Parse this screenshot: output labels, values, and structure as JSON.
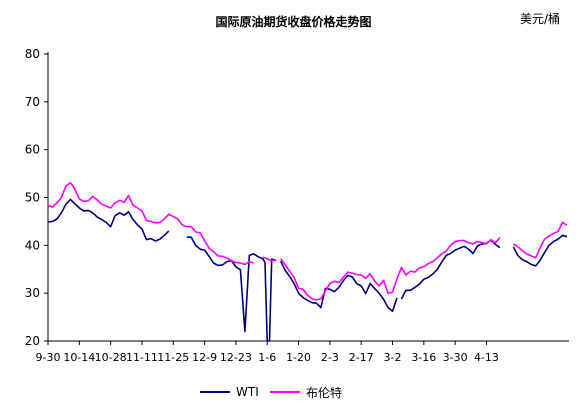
{
  "chart_data": {
    "type": "line",
    "title": "国际原油期货收盘价格走势图",
    "unit": "美元/桶",
    "ylim": [
      20,
      80
    ],
    "yticks": [
      20,
      30,
      40,
      50,
      60,
      70,
      80
    ],
    "grid": false,
    "legend_position": "bottom",
    "x_tick_labels": [
      "9-30",
      "10-14",
      "10-28",
      "11-11",
      "11-25",
      "12-9",
      "12-23",
      "1-6",
      "1-20",
      "2-3",
      "2-17",
      "3-2",
      "3-16",
      "3-30",
      "4-13"
    ],
    "x_index": [
      0,
      7,
      14,
      21,
      28,
      35,
      42,
      49,
      56,
      63,
      70,
      77,
      84,
      91,
      98
    ],
    "series": [
      {
        "name": "WTI",
        "color": "#000080",
        "points": [
          [
            0,
            44.9
          ],
          [
            1,
            45.0
          ],
          [
            2,
            45.5
          ],
          [
            3,
            46.8
          ],
          [
            4,
            48.6
          ],
          [
            5,
            49.6
          ],
          [
            6,
            48.7
          ],
          [
            7,
            47.8
          ],
          [
            8,
            47.2
          ],
          [
            9,
            47.3
          ],
          [
            10,
            46.8
          ],
          [
            11,
            45.9
          ],
          [
            12,
            45.4
          ],
          [
            13,
            44.8
          ],
          [
            14,
            43.9
          ],
          [
            15,
            46.2
          ],
          [
            16,
            46.8
          ],
          [
            17,
            46.3
          ],
          [
            18,
            47.0
          ],
          [
            19,
            45.4
          ],
          [
            20,
            44.3
          ],
          [
            21,
            43.4
          ],
          [
            22,
            41.2
          ],
          [
            23,
            41.4
          ],
          [
            24,
            40.9
          ],
          [
            25,
            41.3
          ],
          [
            26,
            42.1
          ],
          [
            27,
            43.0
          ],
          null,
          [
            31,
            41.7
          ],
          [
            32,
            41.7
          ],
          [
            33,
            40.0
          ],
          [
            34,
            39.2
          ],
          [
            35,
            39.0
          ],
          [
            36,
            37.7
          ],
          [
            37,
            36.3
          ],
          [
            38,
            35.8
          ],
          [
            39,
            35.9
          ],
          [
            40,
            36.6
          ],
          [
            41,
            36.8
          ],
          [
            42,
            35.5
          ],
          [
            43,
            34.9
          ],
          [
            44,
            22.0
          ],
          [
            45,
            37.9
          ],
          [
            46,
            38.2
          ],
          [
            47,
            37.6
          ],
          [
            48,
            37.2
          ],
          [
            48.5,
            36.4
          ],
          [
            49,
            20.0
          ],
          [
            49.5,
            20.0
          ],
          [
            50,
            37.1
          ],
          [
            51,
            36.8
          ],
          null,
          [
            52,
            36.7
          ],
          [
            53,
            34.8
          ],
          [
            54,
            33.5
          ],
          [
            55,
            32.0
          ],
          [
            56,
            30.0
          ],
          [
            57,
            29.1
          ],
          [
            58,
            28.5
          ],
          [
            59,
            28.0
          ],
          [
            60,
            27.9
          ],
          [
            61,
            27.0
          ],
          [
            62,
            31.0
          ],
          [
            63,
            30.8
          ],
          [
            64,
            30.3
          ],
          [
            65,
            31.2
          ],
          [
            66,
            32.6
          ],
          [
            67,
            33.7
          ],
          [
            68,
            33.4
          ],
          [
            69,
            32.0
          ],
          [
            70,
            31.5
          ],
          [
            71,
            29.9
          ],
          [
            72,
            32.0
          ],
          [
            73,
            31.0
          ],
          [
            74,
            30.0
          ],
          [
            75,
            28.7
          ],
          [
            76,
            27.0
          ],
          [
            77,
            26.2
          ],
          [
            78,
            29.0
          ],
          null,
          [
            79,
            28.8
          ],
          [
            80,
            30.6
          ],
          [
            81,
            30.6
          ],
          [
            82,
            31.2
          ],
          [
            83,
            31.9
          ],
          [
            84,
            32.9
          ],
          [
            85,
            33.3
          ],
          [
            86,
            34.0
          ],
          [
            87,
            35.0
          ],
          [
            88,
            36.5
          ],
          [
            89,
            37.9
          ],
          [
            90,
            38.3
          ],
          [
            91,
            39.0
          ],
          [
            92,
            39.4
          ],
          [
            93,
            39.8
          ],
          [
            94,
            39.2
          ],
          [
            95,
            38.3
          ],
          [
            96,
            39.9
          ],
          [
            97,
            40.3
          ],
          [
            98,
            40.4
          ],
          [
            99,
            41.1
          ],
          [
            100,
            40.2
          ],
          [
            101,
            39.5
          ],
          null,
          [
            104,
            39.7
          ],
          [
            105,
            37.9
          ],
          [
            106,
            37.0
          ],
          [
            107,
            36.6
          ],
          [
            108,
            36.0
          ],
          [
            109,
            35.7
          ],
          [
            110,
            36.9
          ],
          [
            111,
            38.5
          ],
          [
            112,
            40.0
          ],
          [
            113,
            40.8
          ],
          [
            114,
            41.3
          ],
          [
            115,
            42.1
          ],
          [
            116,
            41.8
          ]
        ]
      },
      {
        "name": "布伦特",
        "color": "#ff00ff",
        "points": [
          [
            0,
            48.4
          ],
          [
            1,
            48.0
          ],
          [
            2,
            48.9
          ],
          [
            3,
            50.0
          ],
          [
            4,
            52.4
          ],
          [
            5,
            53.1
          ],
          [
            6,
            51.8
          ],
          [
            7,
            49.7
          ],
          [
            8,
            49.2
          ],
          [
            9,
            49.3
          ],
          [
            10,
            50.2
          ],
          [
            11,
            49.5
          ],
          [
            12,
            48.6
          ],
          [
            13,
            48.2
          ],
          [
            14,
            47.8
          ],
          [
            15,
            48.9
          ],
          [
            16,
            49.4
          ],
          [
            17,
            49.0
          ],
          [
            18,
            50.4
          ],
          [
            19,
            48.4
          ],
          [
            20,
            47.8
          ],
          [
            21,
            47.2
          ],
          [
            22,
            45.2
          ],
          [
            23,
            45.0
          ],
          [
            24,
            44.7
          ],
          [
            25,
            44.8
          ],
          [
            26,
            45.5
          ],
          [
            27,
            46.5
          ],
          [
            28,
            46.0
          ],
          [
            29,
            45.5
          ],
          [
            30,
            44.3
          ],
          [
            31,
            43.9
          ],
          [
            32,
            43.9
          ],
          [
            33,
            42.8
          ],
          [
            34,
            42.6
          ],
          [
            35,
            41.0
          ],
          [
            36,
            39.4
          ],
          [
            37,
            38.7
          ],
          [
            38,
            37.8
          ],
          [
            39,
            37.7
          ],
          [
            40,
            37.3
          ],
          [
            41,
            36.8
          ],
          [
            42,
            36.4
          ],
          [
            43,
            36.3
          ],
          [
            44,
            36.0
          ],
          [
            45,
            36.6
          ],
          [
            46,
            36.3
          ],
          null,
          [
            48,
            37.5
          ],
          [
            49,
            37.2
          ],
          [
            50,
            36.7
          ],
          [
            51,
            37.0
          ],
          null,
          [
            52,
            37.2
          ],
          [
            53,
            36.0
          ],
          [
            54,
            34.6
          ],
          [
            55,
            33.3
          ],
          [
            56,
            31.0
          ],
          [
            57,
            30.8
          ],
          [
            58,
            29.6
          ],
          [
            59,
            28.8
          ],
          [
            60,
            28.6
          ],
          [
            61,
            28.8
          ],
          [
            62,
            30.5
          ],
          [
            63,
            32.0
          ],
          [
            64,
            32.5
          ],
          [
            65,
            32.2
          ],
          [
            66,
            33.3
          ],
          [
            67,
            34.4
          ],
          [
            68,
            34.2
          ],
          [
            69,
            33.9
          ],
          [
            70,
            33.8
          ],
          [
            71,
            33.1
          ],
          [
            72,
            34.1
          ],
          [
            73,
            32.5
          ],
          [
            74,
            31.5
          ],
          [
            75,
            32.7
          ],
          [
            76,
            30.0
          ],
          [
            77,
            30.2
          ],
          [
            78,
            33.0
          ],
          [
            79,
            35.4
          ],
          [
            80,
            33.8
          ],
          [
            81,
            34.6
          ],
          [
            82,
            34.4
          ],
          [
            83,
            35.3
          ],
          [
            84,
            35.5
          ],
          [
            85,
            36.2
          ],
          [
            86,
            36.6
          ],
          [
            87,
            37.4
          ],
          [
            88,
            38.2
          ],
          [
            89,
            38.8
          ],
          [
            90,
            40.0
          ],
          [
            91,
            40.8
          ],
          [
            92,
            41.0
          ],
          [
            93,
            41.0
          ],
          [
            94,
            40.5
          ],
          [
            95,
            40.3
          ],
          [
            96,
            40.8
          ],
          [
            97,
            40.6
          ],
          [
            98,
            40.3
          ],
          [
            99,
            41.2
          ],
          [
            100,
            40.5
          ],
          [
            101,
            41.6
          ],
          null,
          [
            104,
            40.3
          ],
          [
            105,
            39.7
          ],
          [
            106,
            38.9
          ],
          [
            107,
            38.2
          ],
          [
            108,
            37.8
          ],
          [
            109,
            37.4
          ],
          [
            110,
            39.5
          ],
          [
            111,
            41.3
          ],
          [
            112,
            42.0
          ],
          [
            113,
            42.5
          ],
          [
            114,
            42.9
          ],
          [
            115,
            44.8
          ],
          [
            116,
            44.2
          ]
        ]
      }
    ]
  }
}
